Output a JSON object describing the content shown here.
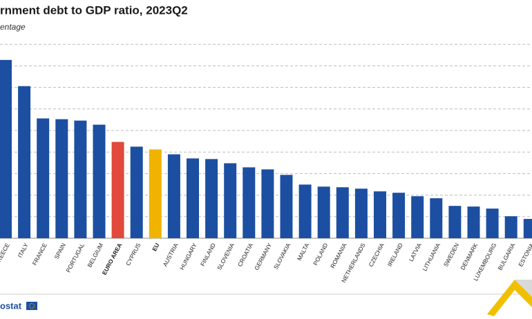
{
  "chart_data": {
    "type": "bar",
    "title": "rnment debt to GDP ratio, 2023Q2",
    "subtitle": "entage",
    "categories": [
      "REECE",
      "ITALY",
      "FRANCE",
      "SPAIN",
      "PORTUGAL",
      "BELGIUM",
      "EURO AREA",
      "CYPRUS",
      "EU",
      "AUSTRIA",
      "HUNGARY",
      "FINLAND",
      "SLOVENIA",
      "CROATIA",
      "GERMANY",
      "SLOVAKIA",
      "MALTA",
      "POLAND",
      "ROMANIA",
      "NETHERLANDS",
      "CZECHIA",
      "IRELAND",
      "LATVIA",
      "LITHUANIA",
      "SWEDEN",
      "DENMARK",
      "LUXEMBOURG",
      "BULGARIA",
      "ESTONIA"
    ],
    "values": [
      165.5,
      141.2,
      111.2,
      110.5,
      109.2,
      105.4,
      89.4,
      85,
      82.4,
      77.9,
      74.1,
      73.5,
      69.6,
      65.8,
      63.9,
      58.8,
      49.8,
      47.9,
      47.3,
      46,
      43.5,
      42.2,
      39,
      37.1,
      30,
      29.4,
      27.5,
      20.4,
      17.9
    ],
    "color": "#1c4fa1",
    "colors": [
      "#1c4fa1",
      "#1c4fa1",
      "#1c4fa1",
      "#1c4fa1",
      "#1c4fa1",
      "#1c4fa1",
      "#e0493c",
      "#1c4fa1",
      "#f0b400",
      "#1c4fa1",
      "#1c4fa1",
      "#1c4fa1",
      "#1c4fa1",
      "#1c4fa1",
      "#1c4fa1",
      "#1c4fa1",
      "#1c4fa1",
      "#1c4fa1",
      "#1c4fa1",
      "#1c4fa1",
      "#1c4fa1",
      "#1c4fa1",
      "#1c4fa1",
      "#1c4fa1",
      "#1c4fa1",
      "#1c4fa1",
      "#1c4fa1",
      "#1c4fa1",
      "#1c4fa1"
    ],
    "ylim": [
      0,
      200
    ],
    "yticks": [
      20,
      40,
      60,
      80,
      100,
      120,
      140,
      160,
      180
    ],
    "grid": true
  },
  "footer": {
    "source": "ostat"
  }
}
